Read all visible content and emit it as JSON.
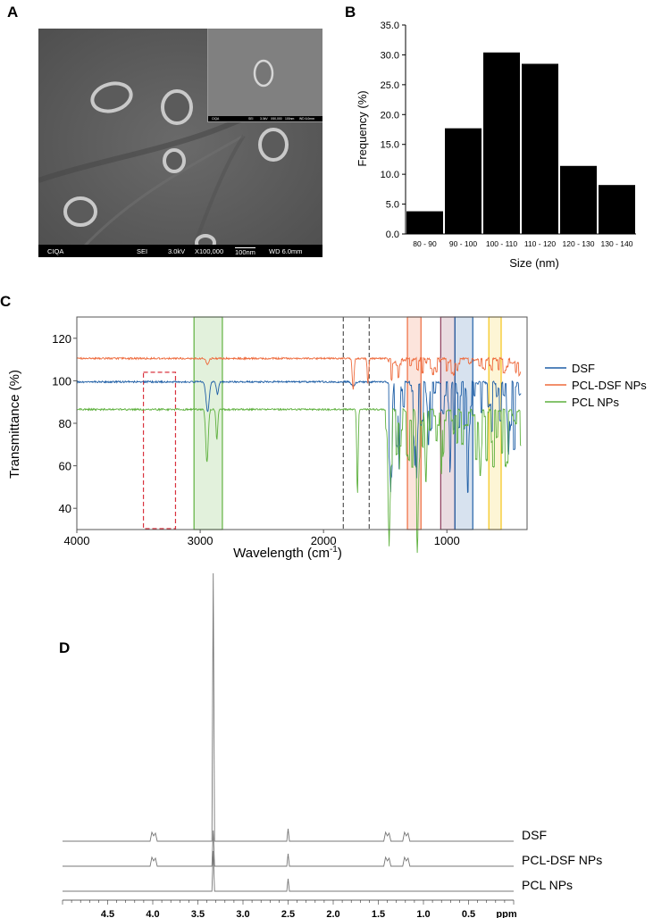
{
  "panels": {
    "a": "A",
    "b": "B",
    "c": "C",
    "d": "D"
  },
  "sem": {
    "bar": [
      "CIQA",
      "SEI",
      "3.0kV",
      "X100,000",
      "100nm",
      "WD 6.0mm"
    ],
    "inset_bar": [
      "CIQA",
      "SEI",
      "3.0kV",
      "X50,000",
      "100nm",
      "WD 6.0mm"
    ]
  },
  "chart_data": [
    {
      "type": "bar",
      "title": "",
      "xlabel": "Size (nm)",
      "ylabel": "Frequency (%)",
      "categories": [
        "80 - 90",
        "90 - 100",
        "100 - 110",
        "110 - 120",
        "120 - 130",
        "130 - 140"
      ],
      "values": [
        3.8,
        17.7,
        30.4,
        28.5,
        11.4,
        8.2
      ],
      "ylim": [
        0,
        35
      ],
      "yticks": [
        "0.0",
        "5.0",
        "10.0",
        "15.0",
        "20.0",
        "25.0",
        "30.0",
        "35.0"
      ],
      "bar_color": "#000000",
      "grid": false
    },
    {
      "type": "line",
      "title": "",
      "xlabel": "Wavelength (cm",
      "xlabel_sup": "-1",
      "xlabel_end": ")",
      "ylabel": "Transmittance (%)",
      "xlim": [
        4000,
        350
      ],
      "ylim": [
        30,
        130
      ],
      "xticks": [
        "4000",
        "3000",
        "2000",
        "1000"
      ],
      "yticks": [
        "40",
        "60",
        "80",
        "100",
        "120"
      ],
      "legend": {
        "position": "right",
        "entries": [
          "DSF",
          "PCL-DSF NPs",
          "PCL NPs"
        ]
      },
      "series_colors": [
        "#1f5fa6",
        "#ee6a3c",
        "#5fb13f"
      ],
      "highlight_regions": [
        {
          "from": 3050,
          "to": 2820,
          "color": "#5fb13f"
        },
        {
          "from": 1320,
          "to": 1210,
          "color": "#ee6a3c"
        },
        {
          "from": 1050,
          "to": 935,
          "color": "#8d3b5a"
        },
        {
          "from": 935,
          "to": 790,
          "color": "#1f5fa6"
        },
        {
          "from": 660,
          "to": 560,
          "color": "#f5c518"
        }
      ],
      "dashed_regions": [
        {
          "from": 3460,
          "to": 3200,
          "color": "#d9333f"
        }
      ],
      "dashed_lines": [
        1840,
        1630
      ]
    },
    {
      "type": "line",
      "title": "",
      "xlabel": "ppm",
      "xlim": [
        5.0,
        0.0
      ],
      "xticks": [
        "4.5",
        "4.0",
        "3.5",
        "3.0",
        "2.5",
        "2.0",
        "1.5",
        "1.0",
        "0.5"
      ],
      "series": [
        {
          "name": "DSF",
          "peaks_ppm": [
            3.99,
            3.33,
            2.5,
            1.4,
            1.19
          ]
        },
        {
          "name": "PCL-DSF NPs",
          "peaks_ppm": [
            3.99,
            3.33,
            2.5,
            1.4,
            1.19
          ]
        },
        {
          "name": "PCL NPs",
          "peaks_ppm": [
            3.33,
            2.5
          ]
        }
      ],
      "line_color": "#777777"
    }
  ]
}
